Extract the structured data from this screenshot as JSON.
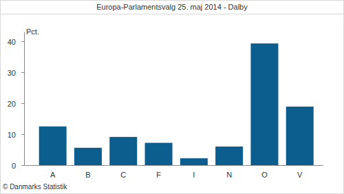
{
  "chart_data": {
    "type": "bar",
    "title": "Europa-Parlamentsvalg 25. maj 2014 - Dalby",
    "y_label": "Pct.",
    "source": "© Danmarks Statistik",
    "categories": [
      "A",
      "B",
      "C",
      "F",
      "I",
      "N",
      "O",
      "V"
    ],
    "values": [
      12.5,
      5.6,
      9.1,
      7.2,
      2.2,
      6.0,
      39.3,
      18.9
    ],
    "color": "#0b5e8e",
    "ylim": [
      0,
      43
    ],
    "yticks": [
      0,
      10,
      20,
      30,
      40
    ],
    "grid": false
  }
}
